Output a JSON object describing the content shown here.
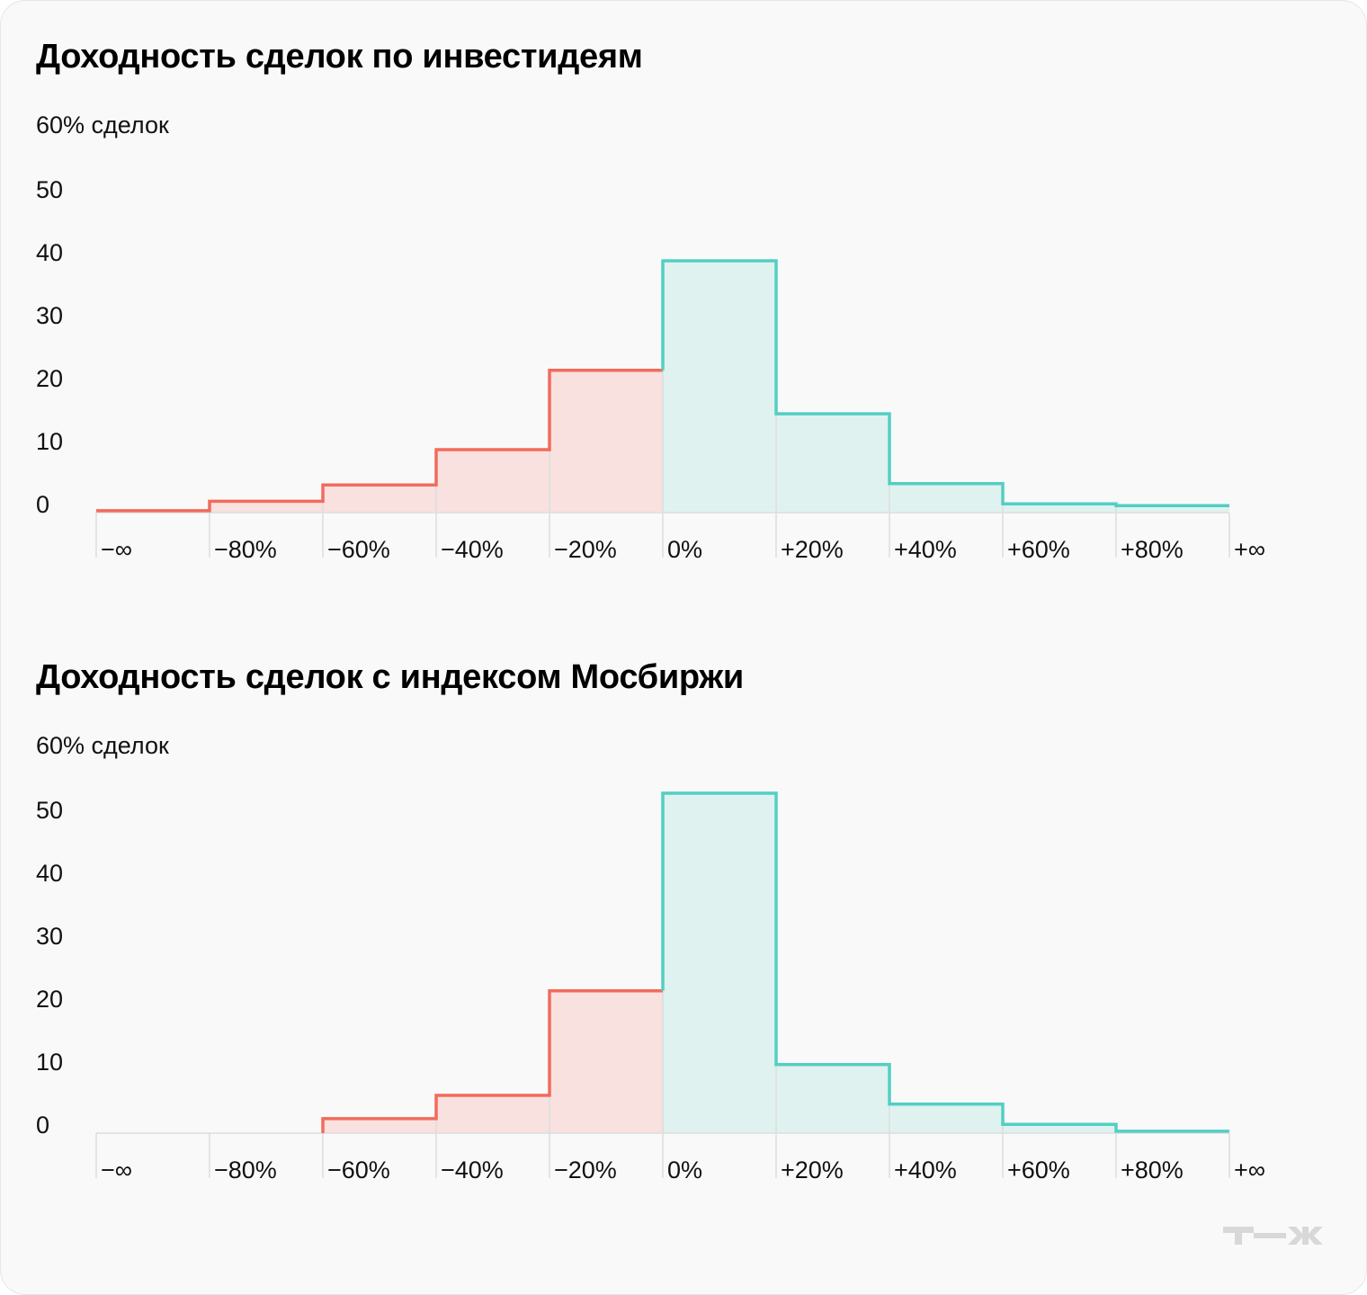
{
  "colors": {
    "negative": "#f26b5b",
    "negative_fill": "#f8e1df",
    "positive": "#52cfc3",
    "positive_fill": "#dff2ef",
    "grid": "#dddddd"
  },
  "logo": "Т—Ж",
  "chart_data": [
    {
      "type": "bar",
      "title": "Доходность сделок по инвестидеям",
      "ylabel": "60% сделок",
      "yticks": [
        "0",
        "10",
        "20",
        "30",
        "40",
        "50"
      ],
      "ylim": [
        0,
        60
      ],
      "xticks": [
        "−∞",
        "−80%",
        "−60%",
        "−40%",
        "−20%",
        "0%",
        "+20%",
        "+40%",
        "+60%",
        "+80%",
        "+∞"
      ],
      "values": [
        0.3,
        1.8,
        4.4,
        10,
        22.6,
        40,
        15.7,
        4.6,
        1.4,
        1.1
      ],
      "grid": false
    },
    {
      "type": "bar",
      "title": "Доходность сделок с индексом Мосбиржи",
      "ylabel": "60% сделок",
      "yticks": [
        "0",
        "10",
        "20",
        "30",
        "40",
        "50"
      ],
      "ylim": [
        0,
        60
      ],
      "xticks": [
        "−∞",
        "−80%",
        "−60%",
        "−40%",
        "−20%",
        "0%",
        "+20%",
        "+40%",
        "+60%",
        "+80%",
        "+∞"
      ],
      "values": [
        0,
        0,
        2.3,
        6,
        22.6,
        54,
        10.9,
        4.6,
        1.4,
        0.3
      ],
      "grid": false
    }
  ]
}
